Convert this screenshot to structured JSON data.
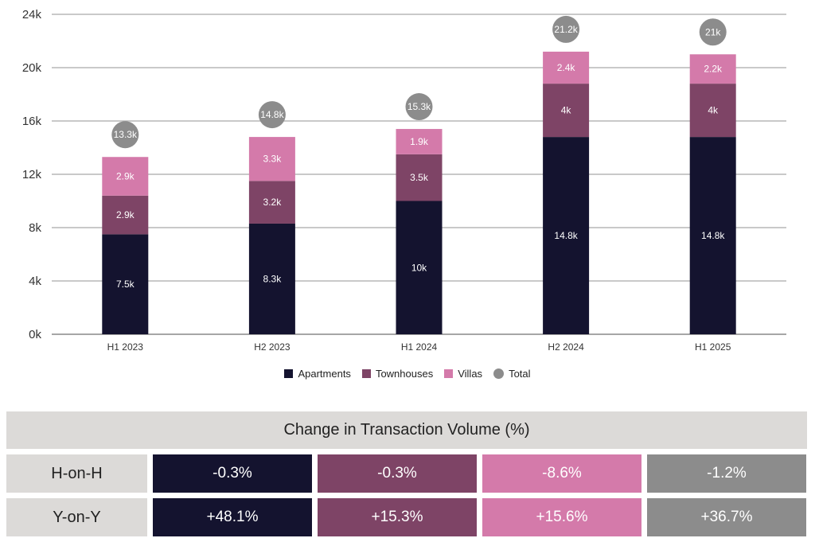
{
  "chart_data": {
    "type": "bar",
    "stacked": true,
    "categories": [
      "H1 2023",
      "H2 2023",
      "H1 2024",
      "H2 2024",
      "H1 2025"
    ],
    "series": [
      {
        "name": "Apartments",
        "color": "#14132f",
        "values": [
          7.5,
          8.3,
          10,
          14.8,
          14.8
        ],
        "labels": [
          "7.5k",
          "8.3k",
          "10k",
          "14.8k",
          "14.8k"
        ]
      },
      {
        "name": "Townhouses",
        "color": "#7e4466",
        "values": [
          2.9,
          3.2,
          3.5,
          4,
          4
        ],
        "labels": [
          "2.9k",
          "3.2k",
          "3.5k",
          "4k",
          "4k"
        ]
      },
      {
        "name": "Villas",
        "color": "#d47aaa",
        "values": [
          2.9,
          3.3,
          1.9,
          2.4,
          2.2
        ],
        "labels": [
          "2.9k",
          "3.3k",
          "1.9k",
          "2.4k",
          "2.2k"
        ]
      }
    ],
    "totals": {
      "name": "Total",
      "color": "#8c8c8c",
      "values": [
        13.3,
        14.8,
        15.3,
        21.2,
        21
      ],
      "labels": [
        "13.3k",
        "14.8k",
        "15.3k",
        "21.2k",
        "21k"
      ]
    },
    "yticks": [
      "0k",
      "4k",
      "8k",
      "12k",
      "16k",
      "20k",
      "24k"
    ],
    "ylim": [
      0,
      24
    ],
    "grid": true,
    "legend_position": "bottom-center"
  },
  "legend": [
    {
      "label": "Apartments",
      "color": "#14132f",
      "shape": "square"
    },
    {
      "label": "Townhouses",
      "color": "#7e4466",
      "shape": "square"
    },
    {
      "label": "Villas",
      "color": "#d47aaa",
      "shape": "square"
    },
    {
      "label": "Total",
      "color": "#8c8c8c",
      "shape": "circle"
    }
  ],
  "table": {
    "title": "Change in Transaction Volume (%)",
    "rows": [
      {
        "label": "H-on-H",
        "values": [
          "-0.3%",
          "-0.3%",
          "-8.6%",
          "-1.2%"
        ]
      },
      {
        "label": "Y-on-Y",
        "values": [
          "+48.1%",
          "+15.3%",
          "+15.6%",
          "+36.7%"
        ]
      }
    ],
    "cell_colors": [
      "#14132f",
      "#7e4466",
      "#d47aaa",
      "#8c8c8c"
    ]
  }
}
